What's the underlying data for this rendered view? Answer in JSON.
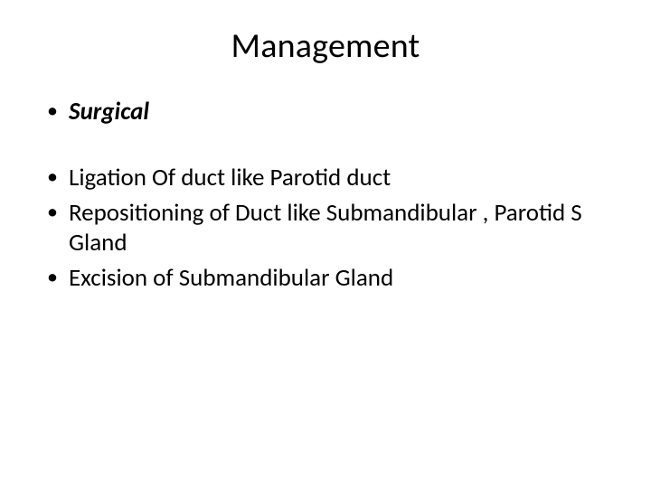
{
  "slide": {
    "title": "Management",
    "bullets": {
      "b1": "Surgical",
      "b2": "Ligation Of duct like Parotid duct",
      "b3": "Repositioning of Duct like Submandibular , Parotid S Gland",
      "b4": "Excision of Submandibular Gland"
    }
  },
  "style": {
    "background_color": "#ffffff",
    "text_color": "#000000",
    "title_fontsize": 38,
    "body_fontsize": 27,
    "font_family": "Calibri"
  }
}
